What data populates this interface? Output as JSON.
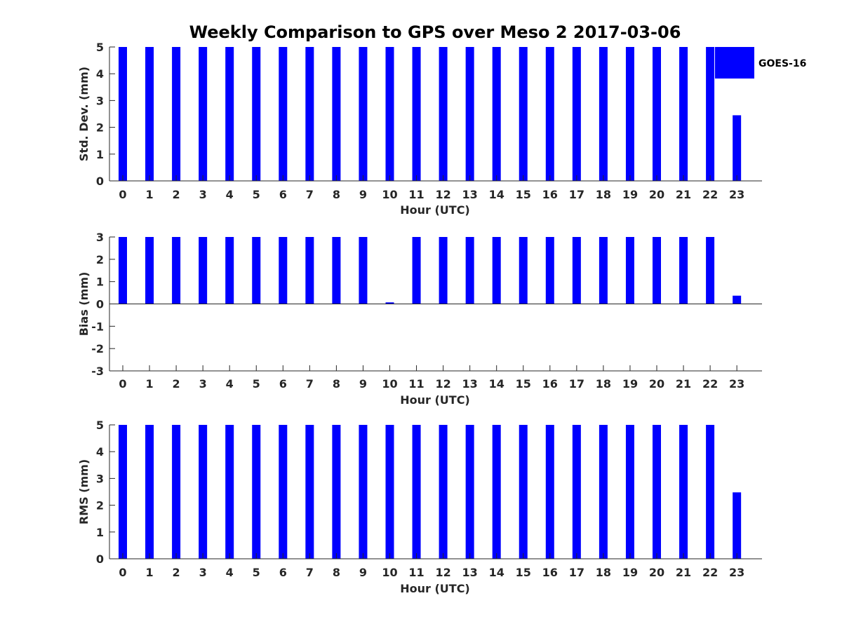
{
  "title": "Weekly Comparison to GPS over Meso 2 2017-03-06",
  "colors": {
    "bar": "#0000ff",
    "axis": "#262626",
    "background": "#ffffff"
  },
  "chart_data": [
    {
      "type": "bar",
      "ylabel": "Std. Dev. (mm)",
      "xlabel": "Hour (UTC)",
      "ylim": [
        0,
        5
      ],
      "yticks": [
        0,
        1,
        2,
        3,
        4,
        5
      ],
      "categories": [
        0,
        1,
        2,
        3,
        4,
        5,
        6,
        7,
        8,
        9,
        10,
        11,
        12,
        13,
        14,
        15,
        16,
        17,
        18,
        19,
        20,
        21,
        22,
        23
      ],
      "legend": {
        "entries": [
          "GOES-16"
        ],
        "placement": "top-right"
      },
      "series": [
        {
          "name": "GOES-16",
          "color": "#0000ff",
          "values": [
            5,
            5,
            5,
            5,
            5,
            5,
            5,
            5,
            5,
            5,
            5,
            5,
            5,
            5,
            5,
            5,
            5,
            5,
            5,
            5,
            5,
            5,
            5,
            2.45
          ]
        }
      ]
    },
    {
      "type": "bar",
      "ylabel": "Bias (mm)",
      "xlabel": "Hour (UTC)",
      "ylim": [
        -3,
        3
      ],
      "yticks": [
        -3,
        -2,
        -1,
        0,
        1,
        2,
        3
      ],
      "categories": [
        0,
        1,
        2,
        3,
        4,
        5,
        6,
        7,
        8,
        9,
        10,
        11,
        12,
        13,
        14,
        15,
        16,
        17,
        18,
        19,
        20,
        21,
        22,
        23
      ],
      "series": [
        {
          "color": "#0000ff",
          "values": [
            3,
            3,
            3,
            3,
            3,
            3,
            3,
            3,
            3,
            3,
            0.07,
            3,
            3,
            3,
            3,
            3,
            3,
            3,
            3,
            3,
            3,
            3,
            3,
            0.37
          ]
        }
      ]
    },
    {
      "type": "bar",
      "ylabel": "RMS (mm)",
      "xlabel": "Hour (UTC)",
      "ylim": [
        0,
        5
      ],
      "yticks": [
        0,
        1,
        2,
        3,
        4,
        5
      ],
      "categories": [
        0,
        1,
        2,
        3,
        4,
        5,
        6,
        7,
        8,
        9,
        10,
        11,
        12,
        13,
        14,
        15,
        16,
        17,
        18,
        19,
        20,
        21,
        22,
        23
      ],
      "series": [
        {
          "color": "#0000ff",
          "values": [
            5,
            5,
            5,
            5,
            5,
            5,
            5,
            5,
            5,
            5,
            5,
            5,
            5,
            5,
            5,
            5,
            5,
            5,
            5,
            5,
            5,
            5,
            5,
            2.48
          ]
        }
      ]
    }
  ]
}
